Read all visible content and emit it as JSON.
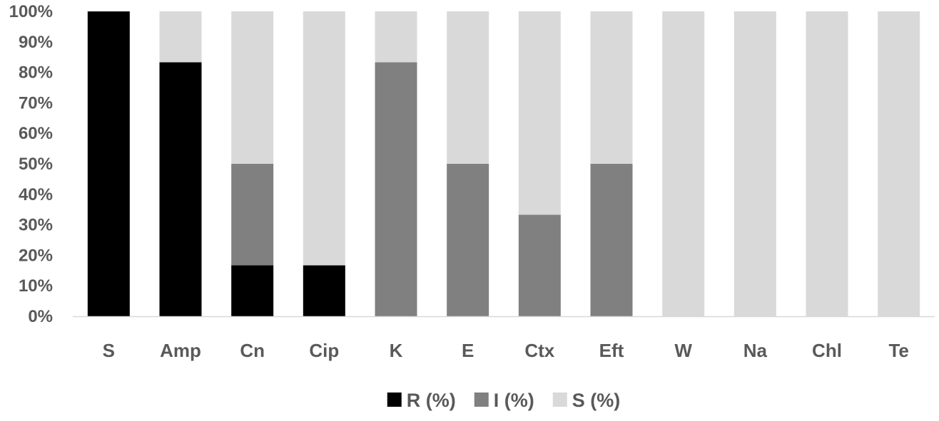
{
  "chart_data": {
    "type": "bar",
    "stacked": true,
    "percent": true,
    "categories": [
      "S",
      "Amp",
      "Cn",
      "Cip",
      "K",
      "E",
      "Ctx",
      "Eft",
      "W",
      "Na",
      "Chl",
      "Te"
    ],
    "series": [
      {
        "name": "R (%)",
        "color": "#000000",
        "values": [
          100,
          83.3,
          16.7,
          16.7,
          0,
          0,
          0,
          0,
          0,
          0,
          0,
          0
        ]
      },
      {
        "name": "I (%)",
        "color": "#808080",
        "values": [
          0,
          0,
          33.3,
          0,
          83.3,
          50,
          33.3,
          50,
          0,
          0,
          0,
          0
        ]
      },
      {
        "name": "S (%)",
        "color": "#d9d9d9",
        "values": [
          0,
          16.7,
          50,
          83.3,
          16.7,
          50,
          66.7,
          50,
          100,
          100,
          100,
          100
        ]
      }
    ],
    "y_ticks": [
      "0%",
      "10%",
      "20%",
      "30%",
      "40%",
      "50%",
      "60%",
      "70%",
      "80%",
      "90%",
      "100%"
    ],
    "ylim": [
      0,
      100
    ],
    "grid": false,
    "legend_position": "bottom"
  }
}
